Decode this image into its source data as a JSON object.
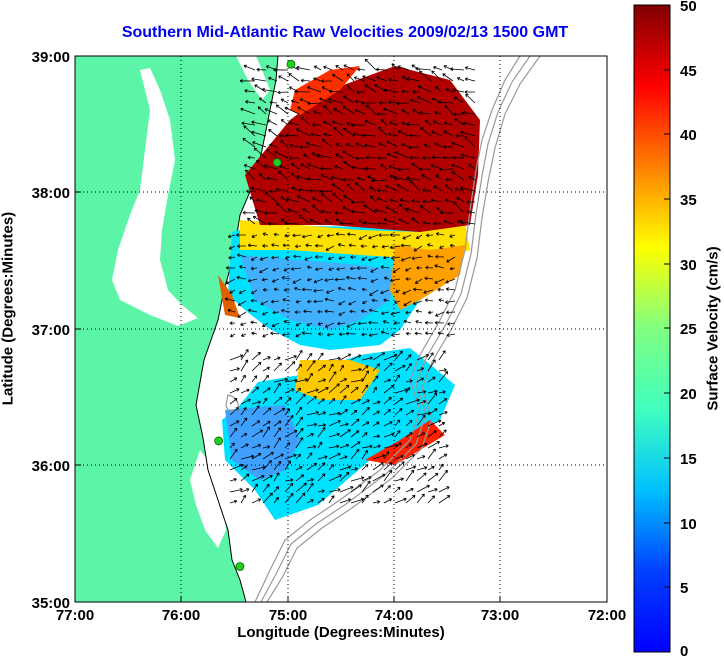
{
  "map": {
    "title": "Southern Mid-Atlantic Raw Velocities 2009/02/13 1500 GMT",
    "xlabel": "Longitude (Degrees:Minutes)",
    "ylabel": "Latitude (Degrees:Minutes)",
    "x_ticks": [
      "77:00",
      "76:00",
      "75:00",
      "74:00",
      "73:00",
      "72:00"
    ],
    "y_ticks": [
      "39:00",
      "38:00",
      "37:00",
      "36:00",
      "35:00"
    ],
    "lon_range": [
      -77,
      -72
    ],
    "lat_range": [
      35,
      39
    ],
    "grid": "dotted",
    "land_color": "#5cf5a8",
    "bathymetry_color": "#999999",
    "station_color": "#22cc22"
  },
  "colorbar": {
    "label": "Surface Velocity (cm/s)",
    "range": [
      0,
      50
    ],
    "ticks": [
      "50",
      "45",
      "40",
      "35",
      "30",
      "25",
      "20",
      "15",
      "10",
      "5",
      "0"
    ],
    "colormap": "jet"
  },
  "chart_data": {
    "type": "heatmap",
    "variable": "Surface Velocity",
    "units": "cm/s",
    "stations": [
      {
        "lon": -74.97,
        "lat": 38.94
      },
      {
        "lon": -75.1,
        "lat": 38.22
      },
      {
        "lon": -75.65,
        "lat": 36.18
      },
      {
        "lon": -75.45,
        "lat": 35.26
      }
    ]
  }
}
